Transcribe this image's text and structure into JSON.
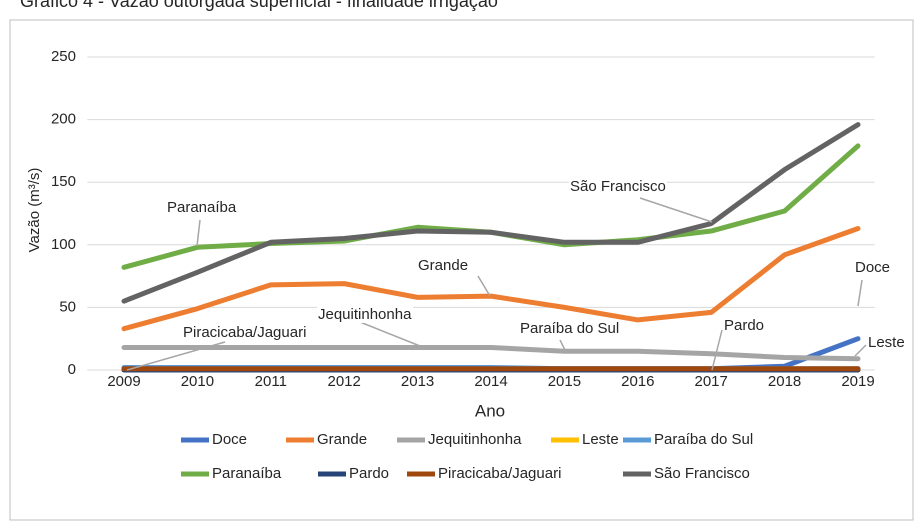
{
  "chart_data": {
    "type": "line",
    "title": "Gráfico 4 - Vazão outorgada superficial - finalidade irrigação",
    "y_label": "Vazão (m³/s)",
    "x_label": "Ano",
    "categories": [
      "2009",
      "2010",
      "2011",
      "2012",
      "2013",
      "2014",
      "2015",
      "2016",
      "2017",
      "2018",
      "2019"
    ],
    "ylim": [
      0,
      250
    ],
    "yticks": [
      0,
      50,
      100,
      150,
      200,
      250
    ],
    "grid": true,
    "series": [
      {
        "name": "Doce",
        "color": "#4472c4",
        "values": [
          1,
          1,
          1,
          1,
          1,
          1,
          1,
          1,
          1,
          3,
          25
        ]
      },
      {
        "name": "Grande",
        "color": "#ed7d31",
        "values": [
          33,
          49,
          68,
          69,
          58,
          59,
          50,
          40,
          46,
          92,
          113
        ]
      },
      {
        "name": "Jequitinhonha",
        "color": "#a5a5a5",
        "values": [
          18,
          18,
          18,
          18,
          18,
          18,
          15,
          15,
          13,
          10,
          9
        ]
      },
      {
        "name": "Leste",
        "color": "#ffc000",
        "values": [
          0,
          0,
          0,
          0,
          0,
          0,
          0,
          0,
          0,
          0,
          0
        ]
      },
      {
        "name": "Paraíba do Sul",
        "color": "#5b9bd5",
        "values": [
          2,
          2,
          2,
          2,
          2,
          2,
          1,
          1,
          1,
          1,
          1
        ]
      },
      {
        "name": "Paranaíba",
        "color": "#70ad47",
        "values": [
          82,
          98,
          101,
          103,
          114,
          110,
          100,
          104,
          111,
          127,
          179
        ]
      },
      {
        "name": "Pardo",
        "color": "#264478",
        "values": [
          0,
          0,
          0,
          0,
          0,
          0,
          0,
          0,
          0,
          0,
          0
        ]
      },
      {
        "name": "Piracicaba/Jaguari",
        "color": "#9e480e",
        "values": [
          1,
          1,
          1,
          1,
          1,
          1,
          1,
          1,
          1,
          1,
          1
        ]
      },
      {
        "name": "São Francisco",
        "color": "#636363",
        "values": [
          55,
          78,
          102,
          105,
          111,
          110,
          102,
          102,
          117,
          160,
          196
        ]
      }
    ],
    "annotations": [
      "Paranaíba",
      "São Francisco",
      "Grande",
      "Jequitinhonha",
      "Piracicaba/Jaguari",
      "Paraíba do Sul",
      "Pardo",
      "Doce",
      "Leste"
    ]
  }
}
